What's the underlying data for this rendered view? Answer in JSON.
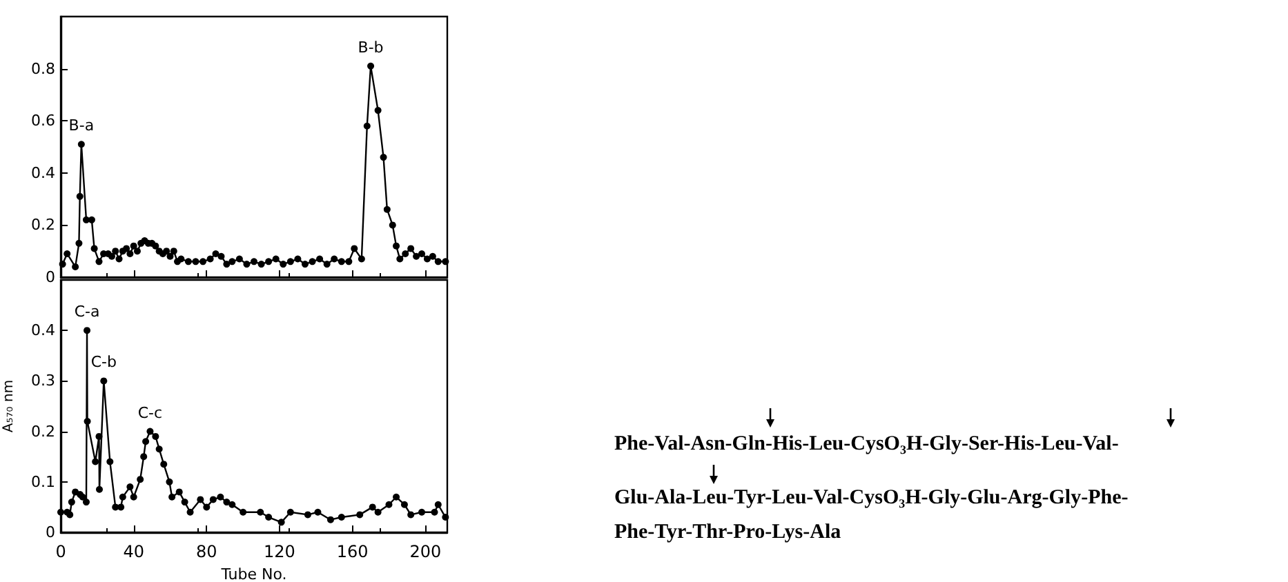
{
  "chart_data": [
    {
      "type": "line",
      "x": [
        1,
        3.5,
        8,
        10,
        10.5,
        11.3,
        14,
        17,
        18.4,
        21,
        23.5,
        26,
        28,
        30,
        32,
        34,
        36,
        38,
        40,
        42,
        44,
        46,
        48,
        50,
        52,
        54,
        56,
        58,
        60,
        62,
        64,
        66,
        70,
        74,
        78,
        82,
        85,
        88,
        91,
        94,
        98,
        102,
        106,
        110,
        114,
        118,
        122,
        126,
        130,
        134,
        138,
        142,
        146,
        150,
        154,
        158,
        161,
        165,
        168,
        170,
        174,
        177,
        179,
        182,
        184,
        186,
        189,
        192,
        195,
        198,
        201,
        204,
        207,
        211
      ],
      "values": [
        0.05,
        0.09,
        0.04,
        0.13,
        0.31,
        0.51,
        0.22,
        0.22,
        0.11,
        0.06,
        0.09,
        0.09,
        0.08,
        0.1,
        0.07,
        0.1,
        0.11,
        0.09,
        0.12,
        0.1,
        0.13,
        0.14,
        0.13,
        0.13,
        0.12,
        0.1,
        0.09,
        0.1,
        0.08,
        0.1,
        0.06,
        0.07,
        0.06,
        0.06,
        0.06,
        0.07,
        0.09,
        0.08,
        0.05,
        0.06,
        0.07,
        0.05,
        0.06,
        0.05,
        0.06,
        0.07,
        0.05,
        0.06,
        0.07,
        0.05,
        0.06,
        0.07,
        0.05,
        0.07,
        0.06,
        0.06,
        0.11,
        0.07,
        0.58,
        0.81,
        0.64,
        0.46,
        0.26,
        0.2,
        0.12,
        0.07,
        0.09,
        0.11,
        0.08,
        0.09,
        0.07,
        0.08,
        0.06,
        0.06
      ],
      "color": "#000000",
      "marker": "circle",
      "line_style": "solid",
      "grid": false,
      "xlim": [
        0,
        212
      ],
      "xticks": [
        0,
        40,
        80,
        120,
        160,
        200
      ],
      "ylim": [
        0,
        1.0
      ],
      "yticks": [
        0,
        0.2,
        0.4,
        0.6,
        0.8
      ],
      "tick_labels": "y",
      "annotations": [
        {
          "text": "B-a",
          "x": 11.3,
          "y": 0.51
        },
        {
          "text": "B-b",
          "x": 170,
          "y": 0.81
        }
      ]
    },
    {
      "type": "line",
      "x": [
        0,
        3.5,
        5,
        6,
        8,
        10.6,
        12,
        14,
        14.4,
        14.6,
        19,
        21,
        21.2,
        23.6,
        27,
        30,
        33,
        34,
        38,
        40,
        43.6,
        45.5,
        46.6,
        49,
        52,
        54,
        56.5,
        59.6,
        61,
        65,
        68,
        71,
        76.6,
        80,
        83.6,
        87.6,
        91,
        94,
        100,
        109.5,
        114,
        121,
        126,
        135.5,
        141,
        148,
        154,
        164,
        171,
        174,
        180,
        184,
        188.5,
        192,
        198,
        205,
        207,
        211
      ],
      "values": [
        0.04,
        0.04,
        0.035,
        0.06,
        0.08,
        0.075,
        0.07,
        0.06,
        0.4,
        0.22,
        0.14,
        0.19,
        0.085,
        0.3,
        0.14,
        0.05,
        0.05,
        0.07,
        0.09,
        0.07,
        0.105,
        0.15,
        0.18,
        0.2,
        0.19,
        0.165,
        0.135,
        0.1,
        0.07,
        0.08,
        0.06,
        0.04,
        0.065,
        0.05,
        0.065,
        0.07,
        0.06,
        0.055,
        0.04,
        0.04,
        0.03,
        0.02,
        0.04,
        0.035,
        0.04,
        0.025,
        0.03,
        0.035,
        0.05,
        0.04,
        0.055,
        0.07,
        0.055,
        0.035,
        0.04,
        0.04,
        0.055,
        0.03
      ],
      "color": "#000000",
      "marker": "circle",
      "line_style": "solid",
      "grid": false,
      "xlim": [
        0,
        212
      ],
      "xticks": [
        0,
        40,
        80,
        120,
        160,
        200
      ],
      "ylim": [
        0,
        0.5
      ],
      "yticks": [
        0,
        0.1,
        0.2,
        0.3,
        0.4
      ],
      "xlabel": "Tube No.",
      "ylabel": "A₅₇₀ nm",
      "annotations": [
        {
          "text": "C-a",
          "x": 14.4,
          "y": 0.4
        },
        {
          "text": "C-b",
          "x": 23.6,
          "y": 0.3
        },
        {
          "text": "C-c",
          "x": 49,
          "y": 0.2
        }
      ]
    },
    {
      "type": "other",
      "annotations": [
        "Phe-Val-Asn-Gln-His-Leu-CysO₃H-Gly-Ser-His-Leu-Val-",
        "Glu-Ala-Leu-Tyr-Leu-Val-CysO₃H-Gly-Glu-Arg-Gly-Phe-",
        "Phe-Tyr-Thr-Pro-Lys-Ala"
      ]
    }
  ]
}
